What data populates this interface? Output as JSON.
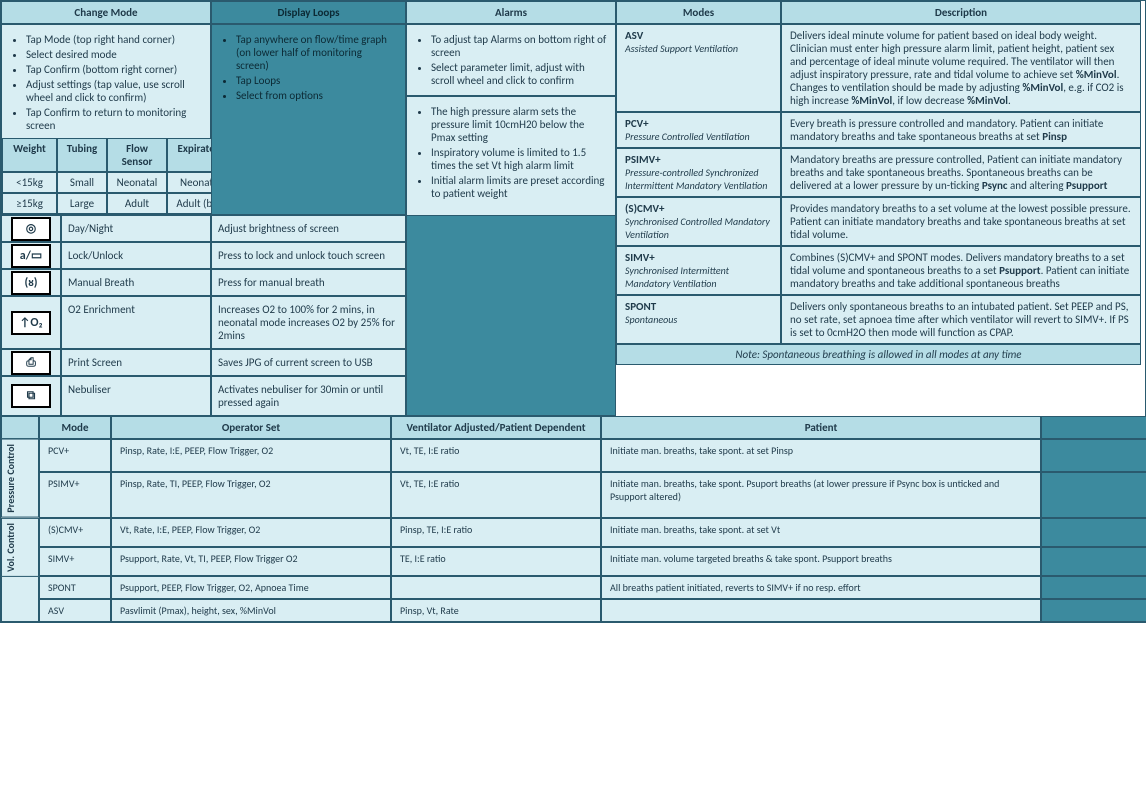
{
  "headers": {
    "change_mode": "Change Mode",
    "display_loops": "Display Loops",
    "alarms": "Alarms",
    "modes": "Modes",
    "description": "Description"
  },
  "change_mode_bullets": [
    "Tap Mode (top right hand corner)",
    "Select desired mode",
    "Tap Confirm (bottom right corner)",
    "Adjust settings (tap value, use scroll wheel and click to confirm)",
    "Tap Confirm to return to monitoring screen"
  ],
  "display_loops_bullets": [
    "Tap anywhere on flow/time graph (on lower half of monitoring screen)",
    "Tap Loops",
    "Select from options"
  ],
  "alarms_top": [
    "To adjust tap Alarms on bottom right of screen",
    "Select parameter limit, adjust with scroll wheel and click to confirm"
  ],
  "alarms_bottom": [
    "The high pressure alarm sets the pressure limit 10cmH20 below the Pmax setting",
    "Inspiratory volume is limited to 1.5 times the set Vt high alarm limit",
    "Initial alarm limits are preset according to patient weight"
  ],
  "wt_headers": [
    "Weight",
    "Tubing",
    "Flow Sensor",
    "Expiratory Valve"
  ],
  "wt_rows": [
    [
      "<15kg",
      "Small",
      "Neonatal",
      "Neonatal (pink)"
    ],
    [
      "≥15kg",
      "Large",
      "Adult",
      "Adult (blue/grey)"
    ]
  ],
  "icon_rows": [
    {
      "icon": "◎",
      "label": "Day/Night",
      "desc": "Adjust brightness of screen"
    },
    {
      "icon": "a/▭",
      "label": "Lock/Unlock",
      "desc": "Press to lock and unlock touch screen"
    },
    {
      "icon": "(ᴕ)",
      "label": "Manual Breath",
      "desc": "Press for manual breath"
    },
    {
      "icon": "↑O₂",
      "label": "O2 Enrichment",
      "desc": "Increases O2 to 100% for 2 mins, in neonatal mode increases O2 by 25% for 2mins"
    },
    {
      "icon": "⎙",
      "label": "Print Screen",
      "desc": "Saves JPG of current screen to USB"
    },
    {
      "icon": "⧉",
      "label": "Nebuliser",
      "desc": "Activates nebuliser for 30min or until pressed again"
    }
  ],
  "modes": [
    {
      "t": "ASV",
      "s": "Assisted Support Ventilation",
      "d": "Delivers ideal minute volume for patient based on ideal body weight.  Clinician must enter high pressure alarm limit, patient height, patient sex and percentage of ideal minute volume required.  The ventilator will then adjust inspiratory pressure, rate and tidal volume to achieve set %MinVol.  Changes to ventilation should be made by adjusting %MinVol, e.g. if CO2 is high increase %MinVol, if low decrease %MinVol."
    },
    {
      "t": "PCV+",
      "s": "Pressure Controlled Ventilation",
      "d": "Every breath is pressure controlled and mandatory.  Patient can initiate mandatory breaths and take spontaneous breaths at set Pinsp"
    },
    {
      "t": "PSIMV+",
      "s": "Pressure-controlled Synchronized Intermittent Mandatory Ventilation",
      "d": "Mandatory breaths are pressure controlled, Patient can initiate mandatory breaths and take spontaneous breaths. Spontaneous breaths can be delivered at a lower pressure by un-ticking Psync and altering Psupport"
    },
    {
      "t": "(S)CMV+",
      "s": "Synchronised Controlled Mandatory Ventilation",
      "d": "Provides mandatory breaths to a set volume at the lowest possible pressure.  Patient can initiate mandatory breaths and take spontaneous breaths at set tidal volume."
    },
    {
      "t": "SIMV+",
      "s": "Synchronised Intermittent Mandatory Ventilation",
      "d": "Combines (S)CMV+ and SPONT modes.  Delivers mandatory breaths to a set tidal volume and spontaneous breaths to a set Psupport.  Patient can initiate mandatory breaths and take additional spontaneous breaths"
    },
    {
      "t": "SPONT",
      "s": "Spontaneous",
      "d": "Delivers only spontaneous breaths to an intubated patient.  Set PEEP and PS, no set rate, set apnoea time after which ventilator will revert to SIMV+.  If PS is set to 0cmH2O then mode will function as CPAP."
    }
  ],
  "note": "Note: Spontaneous breathing is allowed in all modes at any time",
  "bot_headers": [
    "Mode",
    "Operator Set",
    "Ventilator Adjusted/Patient Dependent",
    "Patient"
  ],
  "side_labels": [
    "Pressure Control",
    "Vol. Control",
    ""
  ],
  "bot_rows": [
    {
      "g": 0,
      "m": "PCV+",
      "op": "Pinsp, Rate, I:E, PEEP, Flow Trigger, O2",
      "va": "Vt, TE, I:E ratio",
      "pt": "Initiate man. breaths, take spont. at set Pinsp"
    },
    {
      "g": 0,
      "m": "PSIMV+",
      "op": "Pinsp, Rate, TI, PEEP, Flow Trigger, O2",
      "va": "Vt, TE, I:E ratio",
      "pt": "Initiate man. breaths, take spont. Psuport breaths (at lower pressure if Psync box is unticked and Psupport altered)"
    },
    {
      "g": 1,
      "m": "(S)CMV+",
      "op": "Vt, Rate, I:E, PEEP, Flow Trigger, O2",
      "va": "Pinsp, TE, I:E ratio",
      "pt": "Initiate man. breaths, take spont. at set Vt"
    },
    {
      "g": 1,
      "m": "SIMV+",
      "op": "Psupport, Rate, Vt, TI, PEEP, Flow Trigger O2",
      "va": "TE, I:E ratio",
      "pt": "Initiate man. volume targeted breaths & take spont. Psupport breaths"
    },
    {
      "g": 2,
      "m": "SPONT",
      "op": "Psupport, PEEP, Flow Trigger, O2, Apnoea Time",
      "va": "",
      "pt": "All breaths patient initiated, reverts to SIMV+ if no resp. effort"
    },
    {
      "g": 2,
      "m": "ASV",
      "op": "Pasvlimit (Pmax), height, sex, %MinVol",
      "va": "Pinsp, Vt, Rate",
      "pt": ""
    }
  ]
}
